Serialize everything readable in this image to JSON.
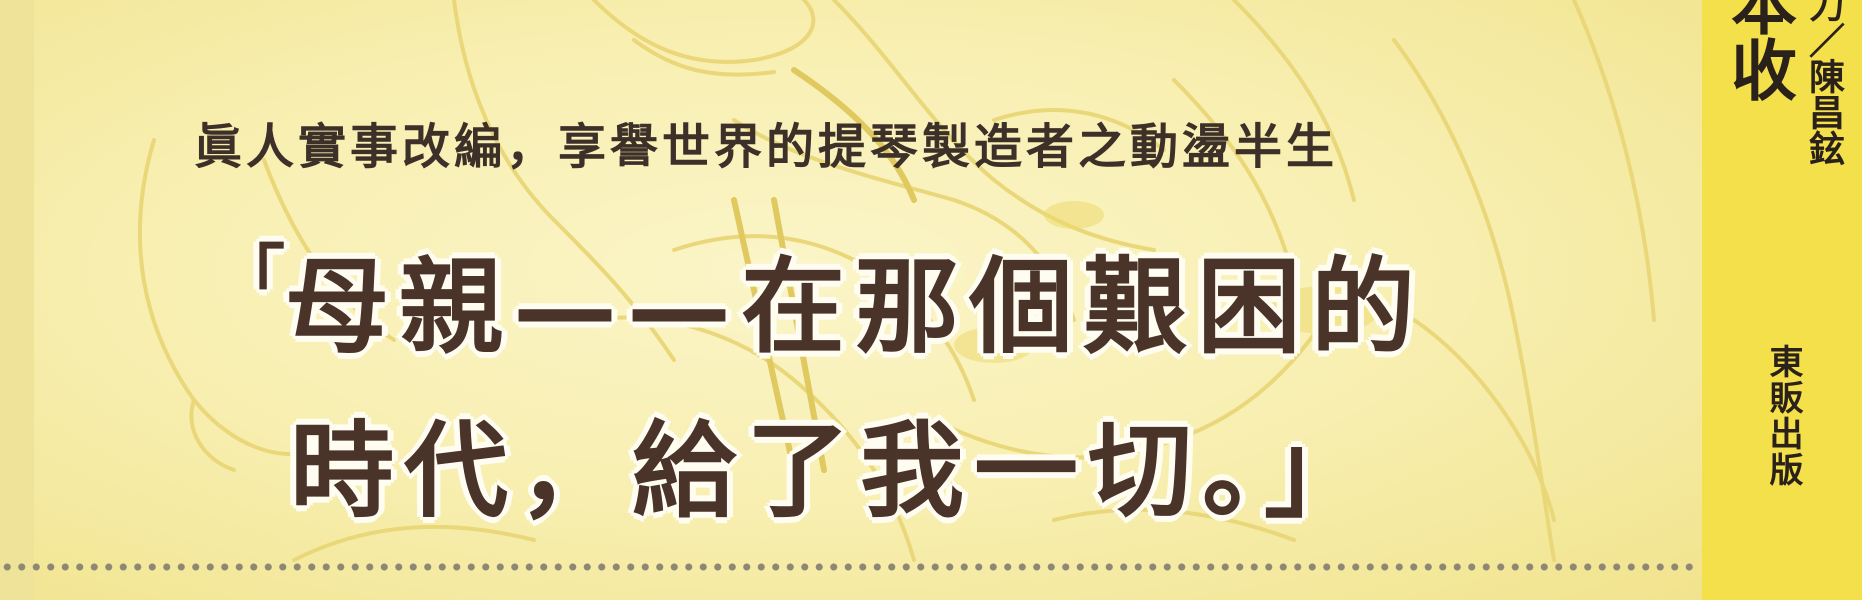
{
  "cover": {
    "subtitle": "眞人實事改編，享譽世界的提琴製造者之動盪半生",
    "quote_open": "「",
    "quote_line_1": "母親——在那個艱困的",
    "quote_line_2": "時代，給了我一切。」"
  },
  "spine": {
    "title": "本收",
    "author": "力／陳昌鉉",
    "publisher": "東販出版"
  },
  "colors": {
    "background": "#f7f0b4",
    "spine": "#f4e04a",
    "text": "#3c3028",
    "quote_outline": "#fffdf2"
  }
}
